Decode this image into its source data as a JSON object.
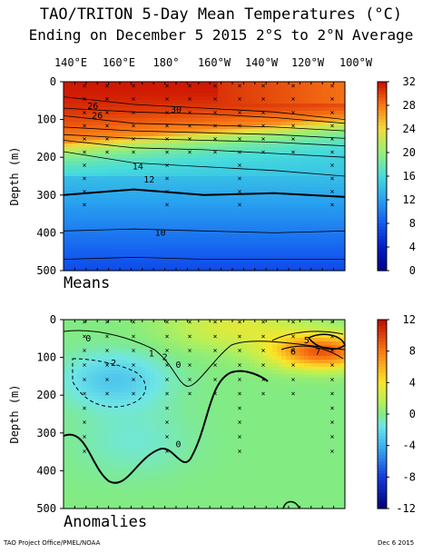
{
  "title": "TAO/TRITON 5-Day Mean Temperatures (°C)",
  "subtitle": "Ending on December 5 2015   2°S to 2°N Average",
  "lon_labels": [
    "140°E",
    "160°E",
    "180°",
    "160°W",
    "140°W",
    "120°W",
    "100°W"
  ],
  "footer_left": "TAO Project Office/PMEL/NOAA",
  "footer_right": "Dec  6 2015",
  "chart_data": [
    {
      "type": "heatmap",
      "panel_label": "Means",
      "ylabel": "Depth (m)",
      "ylim": [
        500,
        0
      ],
      "yticks": [
        0,
        100,
        200,
        300,
        400,
        500
      ],
      "x": [
        "140°E",
        "160°E",
        "180°",
        "160°W",
        "140°W",
        "120°W",
        "100°W"
      ],
      "colorbar_ticks": [
        32,
        28,
        24,
        20,
        16,
        12,
        8,
        4,
        0
      ],
      "colorbar_range": [
        0,
        32
      ],
      "contour_labels": [
        {
          "text": "26",
          "lon": "150°E",
          "depth": 65
        },
        {
          "text": "26",
          "lon": "152°E",
          "depth": 90
        },
        {
          "text": "30",
          "lon": "173°W",
          "depth": 75
        },
        {
          "text": "14",
          "lon": "170°E",
          "depth": 225
        },
        {
          "text": "12",
          "lon": "175°E",
          "depth": 260
        },
        {
          "text": "10",
          "lon": "180°",
          "depth": 400
        }
      ]
    },
    {
      "type": "heatmap",
      "panel_label": "Anomalies",
      "ylabel": "Depth (m)",
      "ylim": [
        500,
        0
      ],
      "yticks": [
        0,
        100,
        200,
        300,
        400,
        500
      ],
      "x": [
        "140°E",
        "160°E",
        "180°",
        "160°W",
        "140°W",
        "120°W",
        "100°W"
      ],
      "colorbar_ticks": [
        12,
        8,
        4,
        0,
        -4,
        -8,
        -12
      ],
      "colorbar_range": [
        -12,
        12
      ],
      "contour_labels": [
        {
          "text": "0",
          "lon": "148°E",
          "depth": 50
        },
        {
          "text": "1",
          "lon": "176°E",
          "depth": 90
        },
        {
          "text": "2",
          "lon": "178°W",
          "depth": 100
        },
        {
          "text": "0",
          "lon": "172°W",
          "depth": 120
        },
        {
          "text": "-2",
          "lon": "158°E",
          "depth": 115
        },
        {
          "text": "0",
          "lon": "172°W",
          "depth": 330
        },
        {
          "text": "6",
          "lon": "121°W",
          "depth": 85
        },
        {
          "text": "5",
          "lon": "115°W",
          "depth": 55
        },
        {
          "text": "7",
          "lon": "110°W",
          "depth": 85
        }
      ]
    }
  ]
}
